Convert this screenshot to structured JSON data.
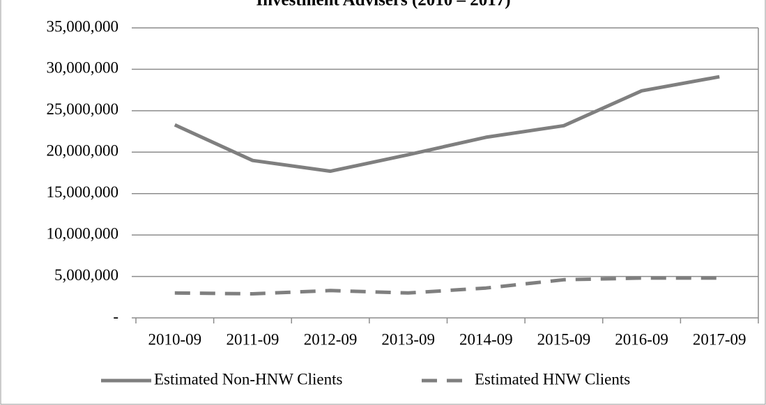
{
  "chart_data": {
    "type": "line",
    "title": "Investment Advisers (2010 – 2017)",
    "categories": [
      "2010-09",
      "2011-09",
      "2012-09",
      "2013-09",
      "2014-09",
      "2015-09",
      "2016-09",
      "2017-09"
    ],
    "series": [
      {
        "name": "Estimated Non-HNW Clients",
        "color": "#7f7f7f",
        "dash": false,
        "values": [
          23300000,
          19000000,
          17700000,
          19700000,
          21800000,
          23200000,
          27400000,
          29100000
        ]
      },
      {
        "name": "Estimated HNW Clients",
        "color": "#7f7f7f",
        "dash": true,
        "values": [
          3000000,
          2900000,
          3300000,
          3000000,
          3600000,
          4600000,
          4800000,
          4800000
        ]
      }
    ],
    "ylim": [
      0,
      35000000
    ],
    "yticks": [
      {
        "value": 0,
        "label": "-"
      },
      {
        "value": 5000000,
        "label": "5,000,000"
      },
      {
        "value": 10000000,
        "label": "10,000,000"
      },
      {
        "value": 15000000,
        "label": "15,000,000"
      },
      {
        "value": 20000000,
        "label": "20,000,000"
      },
      {
        "value": 25000000,
        "label": "25,000,000"
      },
      {
        "value": 30000000,
        "label": "30,000,000"
      },
      {
        "value": 35000000,
        "label": "35,000,000"
      }
    ],
    "grid": true,
    "legend": "bottom"
  }
}
